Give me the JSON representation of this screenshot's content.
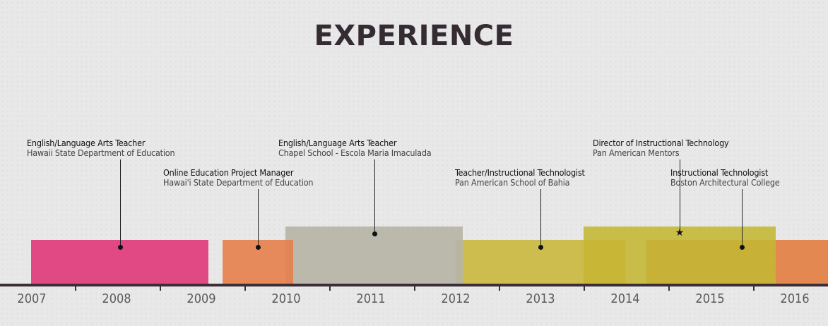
{
  "page": {
    "title": "EXPERIENCE"
  },
  "axis": {
    "years": [
      "2007",
      "2008",
      "2009",
      "2010",
      "2011",
      "2012",
      "2013",
      "2014",
      "2015",
      "2016"
    ]
  },
  "jobs": [
    {
      "role": "English/Language Arts Teacher",
      "org": "Hawaii State Department of Education",
      "color": "#e0407e",
      "marker": "dot"
    },
    {
      "role": "Online Education Project Manager",
      "org": "Hawai'i State Department of Education",
      "color": "#e57f4c",
      "marker": "dot"
    },
    {
      "role": "English/Language Arts Teacher",
      "org": "Chapel School - Escola Maria Imaculada",
      "color": "#b5b4a5",
      "marker": "dot"
    },
    {
      "role": "Teacher/Instructional Technologist",
      "org": "Pan American School of Bahia",
      "color": "#c8b534",
      "marker": "dot"
    },
    {
      "role": "Director of Instructional Technology",
      "org": "Pan American Mentors",
      "color": "#c3b632",
      "marker": "star"
    },
    {
      "role": "Instructional Technologist",
      "org": "Boston Architectural College",
      "color": "#e07a3a",
      "marker": "dot"
    }
  ]
}
